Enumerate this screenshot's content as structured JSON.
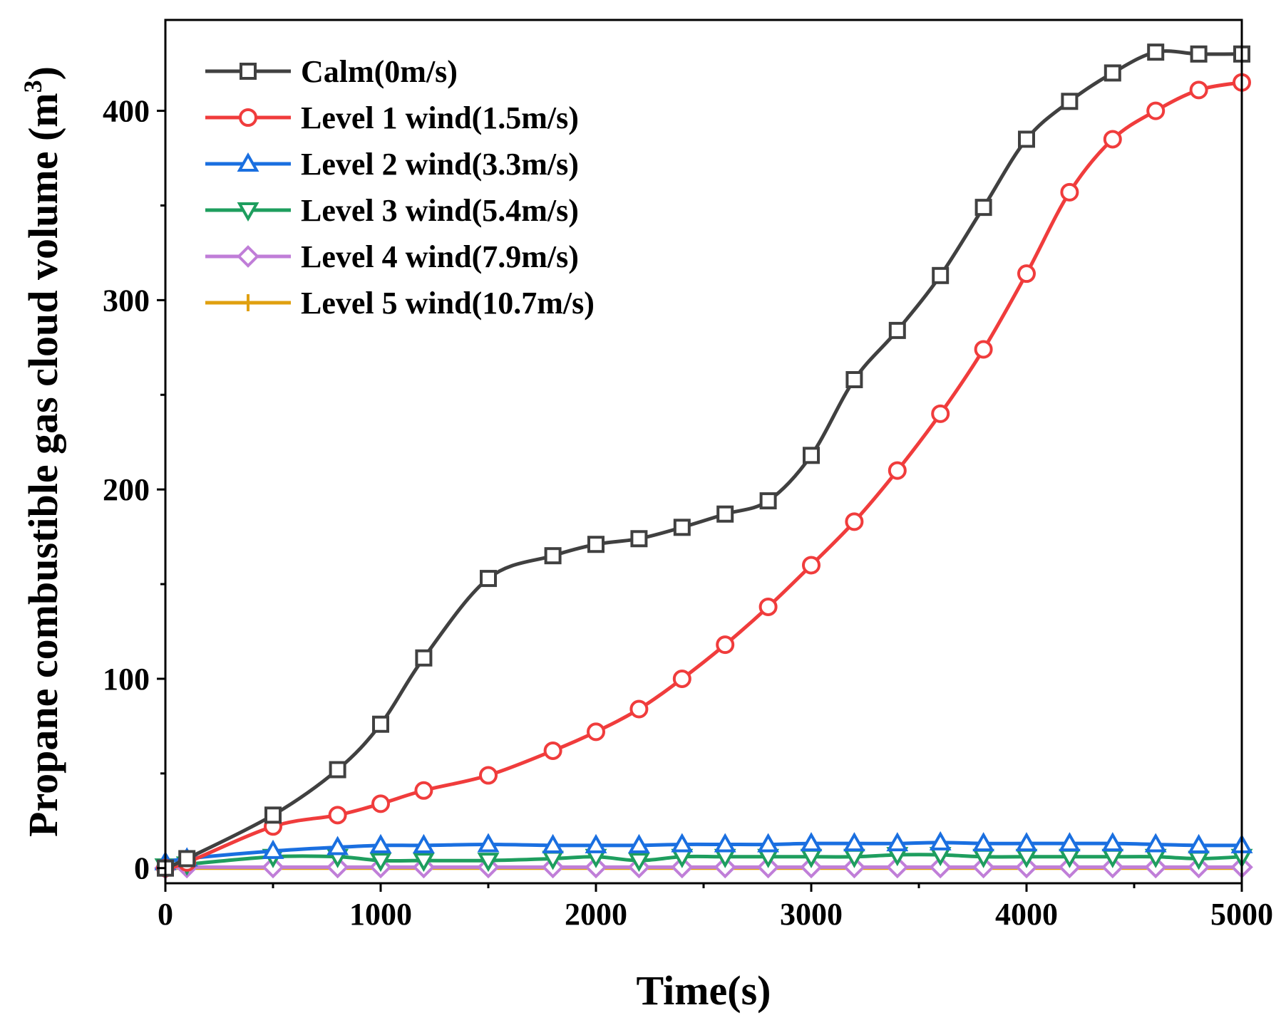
{
  "chart_data": {
    "type": "line",
    "title": "",
    "xlabel": "Time(s)",
    "ylabel": {
      "prefix": "Propane combustible gas cloud volume (m",
      "superscript": "3",
      "suffix": ")"
    },
    "xlim": [
      0,
      5000
    ],
    "ylim": [
      -8,
      448
    ],
    "xticks": [
      0,
      1000,
      2000,
      3000,
      4000,
      5000
    ],
    "xtick_labels": [
      "0",
      "1000",
      "2000",
      "3000",
      "4000",
      "5000"
    ],
    "yticks": [
      0,
      100,
      200,
      300,
      400
    ],
    "ytick_labels": [
      "0",
      "100",
      "200",
      "300",
      "400"
    ],
    "grid": false,
    "legend_position": "top-left",
    "series": [
      {
        "name": "Calm(0m/s)",
        "color": "#404040",
        "marker": "square",
        "x": [
          0,
          100,
          500,
          800,
          1000,
          1200,
          1500,
          1800,
          2000,
          2200,
          2400,
          2600,
          2800,
          3000,
          3200,
          3400,
          3600,
          3800,
          4000,
          4200,
          4400,
          4600,
          4800,
          5000
        ],
        "y": [
          0,
          5,
          28,
          52,
          76,
          111,
          153,
          165,
          171,
          174,
          180,
          187,
          194,
          218,
          258,
          284,
          313,
          349,
          385,
          405,
          420,
          431,
          430,
          430
        ]
      },
      {
        "name": "Level 1 wind(1.5m/s)",
        "color": "#f03c3c",
        "marker": "circle",
        "x": [
          0,
          100,
          500,
          800,
          1000,
          1200,
          1500,
          1800,
          2000,
          2200,
          2400,
          2600,
          2800,
          3000,
          3200,
          3400,
          3600,
          3800,
          4000,
          4200,
          4400,
          4600,
          4800,
          5000
        ],
        "y": [
          0,
          3,
          22,
          28,
          34,
          41,
          49,
          62,
          72,
          84,
          100,
          118,
          138,
          160,
          183,
          210,
          240,
          274,
          314,
          357,
          385,
          400,
          411,
          415
        ]
      },
      {
        "name": "Level 2 wind(3.3m/s)",
        "color": "#1a6fe0",
        "marker": "triangle-up",
        "x": [
          0,
          100,
          500,
          800,
          1000,
          1200,
          1500,
          1800,
          2000,
          2200,
          2400,
          2600,
          2800,
          3000,
          3200,
          3400,
          3600,
          3800,
          4000,
          4200,
          4400,
          4600,
          4800,
          5000
        ],
        "y": [
          3,
          5,
          9,
          11,
          12,
          12,
          12.5,
          12,
          12,
          12,
          12.5,
          12.5,
          12.5,
          13,
          13,
          13,
          13.5,
          13,
          13,
          13,
          13,
          12.5,
          12,
          12
        ]
      },
      {
        "name": "Level 3 wind(5.4m/s)",
        "color": "#1e9e5e",
        "marker": "triangle-down",
        "x": [
          0,
          100,
          500,
          800,
          1000,
          1200,
          1500,
          1800,
          2000,
          2200,
          2400,
          2600,
          2800,
          3000,
          3200,
          3400,
          3600,
          3800,
          4000,
          4200,
          4400,
          4600,
          4800,
          5000
        ],
        "y": [
          1,
          2,
          6,
          6,
          4,
          4,
          4,
          5,
          6,
          4,
          6,
          6,
          6,
          6,
          6,
          7,
          7,
          6,
          6,
          6,
          6,
          6,
          5,
          6
        ]
      },
      {
        "name": "Level 4 wind(7.9m/s)",
        "color": "#c07ed8",
        "marker": "diamond",
        "x": [
          0,
          100,
          500,
          800,
          1000,
          1200,
          1500,
          1800,
          2000,
          2200,
          2400,
          2600,
          2800,
          3000,
          3200,
          3400,
          3600,
          3800,
          4000,
          4200,
          4400,
          4600,
          4800,
          5000
        ],
        "y": [
          0,
          0.5,
          0.5,
          0.5,
          0.5,
          0.5,
          0.5,
          0.5,
          0.5,
          0.5,
          0.5,
          0.5,
          0.5,
          0.5,
          0.5,
          0.5,
          0.5,
          0.5,
          0.5,
          0.5,
          0.5,
          0.5,
          0.5,
          0.5
        ]
      },
      {
        "name": "Level 5 wind(10.7m/s)",
        "color": "#e0a010",
        "marker": "plus",
        "x": [
          0,
          100,
          500,
          800,
          1000,
          1200,
          1500,
          1800,
          2000,
          2200,
          2400,
          2600,
          2800,
          3000,
          3200,
          3400,
          3600,
          3800,
          4000,
          4200,
          4400,
          4600,
          4800,
          5000
        ],
        "y": [
          0,
          0,
          0,
          0,
          0,
          0,
          0,
          0,
          0,
          0,
          0,
          0,
          0,
          0,
          0,
          0,
          0,
          0,
          0,
          0,
          0,
          0,
          0,
          0
        ]
      }
    ]
  }
}
